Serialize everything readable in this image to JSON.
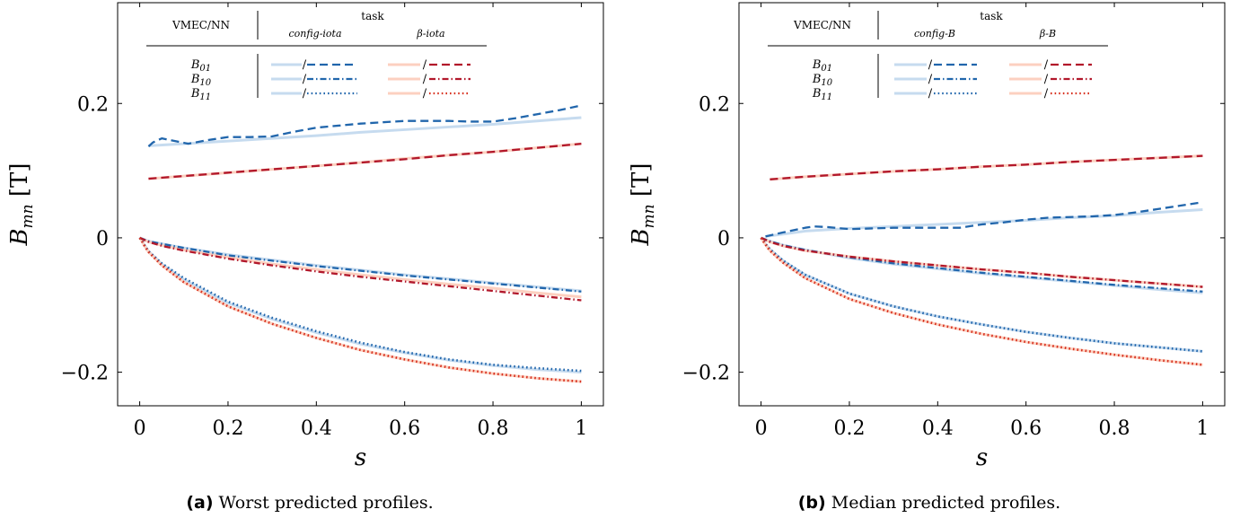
{
  "colors": {
    "blue_truth": "#c6dbef",
    "blue_pred": "#2166ac",
    "red_truth": "#fcd0c0",
    "red_pred": "#b2182b",
    "red_pred_dotted": "#d7301f"
  },
  "series_styles": {
    "B01": "dashed",
    "B10": "dash-dot",
    "B11": "dotted"
  },
  "chart_data": [
    {
      "type": "line",
      "caption_tag": "(a)",
      "caption_text": "Worst predicted profiles.",
      "xlabel": "s",
      "ylabel_main": "B",
      "ylabel_sub": "mn",
      "ylabel_unit": "[T]",
      "xlim": [
        -0.05,
        1.05
      ],
      "ylim": [
        -0.25,
        0.35
      ],
      "xticks": [
        0,
        0.2,
        0.4,
        0.6,
        0.8,
        1
      ],
      "xtick_labels": [
        "0",
        "0.2",
        "0.4",
        "0.6",
        "0.8",
        "1"
      ],
      "yticks": [
        -0.2,
        0,
        0.2
      ],
      "ytick_labels": [
        "−0.2",
        "0",
        "0.2"
      ],
      "legend": {
        "col1_header": "VMEC/NN",
        "task_header": "task",
        "tasks": [
          "config-iota",
          "β-iota"
        ],
        "rows": [
          {
            "base": "B",
            "sub": "01"
          },
          {
            "base": "B",
            "sub": "10"
          },
          {
            "base": "B",
            "sub": "11"
          }
        ],
        "slash": "/"
      },
      "series": [
        {
          "task": 0,
          "mode": "B01",
          "kind": "truth",
          "x": [
            0.02,
            0.1,
            0.2,
            0.3,
            0.4,
            0.5,
            0.6,
            0.7,
            0.8,
            0.9,
            1.0
          ],
          "y": [
            0.137,
            0.14,
            0.144,
            0.148,
            0.152,
            0.157,
            0.161,
            0.165,
            0.169,
            0.174,
            0.179
          ]
        },
        {
          "task": 0,
          "mode": "B01",
          "kind": "pred",
          "x": [
            0.02,
            0.03,
            0.05,
            0.08,
            0.11,
            0.15,
            0.2,
            0.25,
            0.3,
            0.35,
            0.4,
            0.45,
            0.5,
            0.55,
            0.6,
            0.65,
            0.7,
            0.75,
            0.8,
            0.85,
            0.9,
            0.95,
            1.0
          ],
          "y": [
            0.136,
            0.142,
            0.148,
            0.144,
            0.14,
            0.145,
            0.15,
            0.15,
            0.151,
            0.158,
            0.164,
            0.167,
            0.17,
            0.172,
            0.174,
            0.174,
            0.174,
            0.173,
            0.173,
            0.178,
            0.184,
            0.19,
            0.197
          ]
        },
        {
          "task": 0,
          "mode": "B10",
          "kind": "truth",
          "x": [
            0,
            0.02,
            0.05,
            0.1,
            0.2,
            0.3,
            0.4,
            0.5,
            0.6,
            0.7,
            0.8,
            0.9,
            1.0
          ],
          "y": [
            0,
            -0.005,
            -0.009,
            -0.015,
            -0.025,
            -0.033,
            -0.041,
            -0.048,
            -0.055,
            -0.061,
            -0.067,
            -0.073,
            -0.079
          ]
        },
        {
          "task": 0,
          "mode": "B10",
          "kind": "pred",
          "x": [
            0,
            0.02,
            0.05,
            0.1,
            0.2,
            0.3,
            0.4,
            0.5,
            0.6,
            0.7,
            0.8,
            0.9,
            1.0
          ],
          "y": [
            0,
            -0.005,
            -0.009,
            -0.015,
            -0.026,
            -0.034,
            -0.042,
            -0.049,
            -0.056,
            -0.062,
            -0.068,
            -0.074,
            -0.08
          ]
        },
        {
          "task": 0,
          "mode": "B11",
          "kind": "truth",
          "x": [
            0,
            0.005,
            0.01,
            0.02,
            0.05,
            0.1,
            0.2,
            0.3,
            0.4,
            0.5,
            0.6,
            0.7,
            0.8,
            0.9,
            1.0
          ],
          "y": [
            0,
            -0.004,
            -0.01,
            -0.02,
            -0.039,
            -0.062,
            -0.097,
            -0.121,
            -0.141,
            -0.158,
            -0.171,
            -0.182,
            -0.19,
            -0.196,
            -0.2
          ]
        },
        {
          "task": 0,
          "mode": "B11",
          "kind": "pred",
          "x": [
            0,
            0.005,
            0.01,
            0.02,
            0.05,
            0.1,
            0.2,
            0.3,
            0.4,
            0.5,
            0.6,
            0.7,
            0.8,
            0.9,
            1.0
          ],
          "y": [
            0,
            -0.004,
            -0.01,
            -0.02,
            -0.038,
            -0.06,
            -0.095,
            -0.119,
            -0.139,
            -0.156,
            -0.17,
            -0.181,
            -0.189,
            -0.194,
            -0.198
          ]
        },
        {
          "task": 1,
          "mode": "B01",
          "kind": "truth",
          "x": [
            0.02,
            0.1,
            0.2,
            0.3,
            0.4,
            0.5,
            0.6,
            0.7,
            0.8,
            0.9,
            1.0
          ],
          "y": [
            0.088,
            0.092,
            0.097,
            0.102,
            0.107,
            0.112,
            0.118,
            0.123,
            0.128,
            0.134,
            0.14
          ]
        },
        {
          "task": 1,
          "mode": "B01",
          "kind": "pred",
          "x": [
            0.02,
            0.1,
            0.2,
            0.3,
            0.4,
            0.5,
            0.6,
            0.7,
            0.8,
            0.9,
            1.0
          ],
          "y": [
            0.088,
            0.092,
            0.097,
            0.102,
            0.107,
            0.112,
            0.117,
            0.123,
            0.128,
            0.134,
            0.14
          ]
        },
        {
          "task": 1,
          "mode": "B10",
          "kind": "truth",
          "x": [
            0,
            0.02,
            0.05,
            0.1,
            0.2,
            0.3,
            0.4,
            0.5,
            0.6,
            0.7,
            0.8,
            0.9,
            1.0
          ],
          "y": [
            0,
            -0.006,
            -0.011,
            -0.018,
            -0.029,
            -0.039,
            -0.047,
            -0.055,
            -0.062,
            -0.069,
            -0.075,
            -0.082,
            -0.088
          ]
        },
        {
          "task": 1,
          "mode": "B10",
          "kind": "pred",
          "x": [
            0,
            0.02,
            0.05,
            0.1,
            0.2,
            0.3,
            0.4,
            0.5,
            0.6,
            0.7,
            0.8,
            0.9,
            1.0
          ],
          "y": [
            0,
            -0.006,
            -0.012,
            -0.019,
            -0.031,
            -0.041,
            -0.05,
            -0.058,
            -0.065,
            -0.072,
            -0.079,
            -0.086,
            -0.093
          ]
        },
        {
          "task": 1,
          "mode": "B11",
          "kind": "truth",
          "x": [
            0,
            0.005,
            0.01,
            0.02,
            0.05,
            0.1,
            0.2,
            0.3,
            0.4,
            0.5,
            0.6,
            0.7,
            0.8,
            0.9,
            1.0
          ],
          "y": [
            0,
            -0.005,
            -0.011,
            -0.021,
            -0.041,
            -0.066,
            -0.102,
            -0.128,
            -0.149,
            -0.167,
            -0.181,
            -0.193,
            -0.202,
            -0.209,
            -0.214
          ]
        },
        {
          "task": 1,
          "mode": "B11",
          "kind": "pred",
          "x": [
            0,
            0.005,
            0.01,
            0.02,
            0.05,
            0.1,
            0.2,
            0.3,
            0.4,
            0.5,
            0.6,
            0.7,
            0.8,
            0.9,
            1.0
          ],
          "y": [
            0,
            -0.005,
            -0.011,
            -0.021,
            -0.041,
            -0.066,
            -0.102,
            -0.128,
            -0.149,
            -0.167,
            -0.181,
            -0.193,
            -0.202,
            -0.209,
            -0.214
          ]
        }
      ]
    },
    {
      "type": "line",
      "caption_tag": "(b)",
      "caption_text": "Median predicted profiles.",
      "xlabel": "s",
      "ylabel_main": "B",
      "ylabel_sub": "mn",
      "ylabel_unit": "[T]",
      "xlim": [
        -0.05,
        1.05
      ],
      "ylim": [
        -0.25,
        0.35
      ],
      "xticks": [
        0,
        0.2,
        0.4,
        0.6,
        0.8,
        1
      ],
      "xtick_labels": [
        "0",
        "0.2",
        "0.4",
        "0.6",
        "0.8",
        "1"
      ],
      "yticks": [
        -0.2,
        0,
        0.2
      ],
      "ytick_labels": [
        "−0.2",
        "0",
        "0.2"
      ],
      "legend": {
        "col1_header": "VMEC/NN",
        "task_header": "task",
        "tasks": [
          "config-B",
          "β-B"
        ],
        "rows": [
          {
            "base": "B",
            "sub": "01"
          },
          {
            "base": "B",
            "sub": "10"
          },
          {
            "base": "B",
            "sub": "11"
          }
        ],
        "slash": "/"
      },
      "series": [
        {
          "task": 0,
          "mode": "B01",
          "kind": "truth",
          "x": [
            0.01,
            0.1,
            0.2,
            0.3,
            0.4,
            0.5,
            0.6,
            0.7,
            0.8,
            0.9,
            1.0
          ],
          "y": [
            0.002,
            0.01,
            0.014,
            0.017,
            0.02,
            0.023,
            0.026,
            0.03,
            0.033,
            0.038,
            0.042
          ]
        },
        {
          "task": 0,
          "mode": "B01",
          "kind": "pred",
          "x": [
            0.01,
            0.05,
            0.1,
            0.12,
            0.15,
            0.2,
            0.25,
            0.3,
            0.35,
            0.4,
            0.45,
            0.5,
            0.55,
            0.6,
            0.65,
            0.7,
            0.75,
            0.8,
            0.85,
            0.9,
            0.95,
            1.0
          ],
          "y": [
            0.002,
            0.008,
            0.015,
            0.017,
            0.016,
            0.013,
            0.014,
            0.015,
            0.015,
            0.015,
            0.015,
            0.02,
            0.023,
            0.027,
            0.03,
            0.031,
            0.032,
            0.034,
            0.038,
            0.043,
            0.048,
            0.053
          ]
        },
        {
          "task": 0,
          "mode": "B10",
          "kind": "truth",
          "x": [
            0,
            0.02,
            0.05,
            0.1,
            0.2,
            0.3,
            0.4,
            0.5,
            0.6,
            0.7,
            0.8,
            0.9,
            1.0
          ],
          "y": [
            0,
            -0.005,
            -0.011,
            -0.018,
            -0.03,
            -0.039,
            -0.046,
            -0.053,
            -0.059,
            -0.065,
            -0.071,
            -0.077,
            -0.082
          ]
        },
        {
          "task": 0,
          "mode": "B10",
          "kind": "pred",
          "x": [
            0,
            0.02,
            0.05,
            0.1,
            0.2,
            0.3,
            0.4,
            0.5,
            0.6,
            0.7,
            0.8,
            0.9,
            1.0
          ],
          "y": [
            0,
            -0.005,
            -0.011,
            -0.018,
            -0.029,
            -0.038,
            -0.045,
            -0.052,
            -0.058,
            -0.064,
            -0.07,
            -0.075,
            -0.08
          ]
        },
        {
          "task": 0,
          "mode": "B11",
          "kind": "truth",
          "x": [
            0,
            0.005,
            0.01,
            0.02,
            0.05,
            0.1,
            0.2,
            0.3,
            0.4,
            0.5,
            0.6,
            0.7,
            0.8,
            0.9,
            1.0
          ],
          "y": [
            0,
            -0.004,
            -0.009,
            -0.017,
            -0.034,
            -0.055,
            -0.083,
            -0.102,
            -0.117,
            -0.129,
            -0.14,
            -0.149,
            -0.157,
            -0.163,
            -0.169
          ]
        },
        {
          "task": 0,
          "mode": "B11",
          "kind": "pred",
          "x": [
            0,
            0.005,
            0.01,
            0.02,
            0.05,
            0.1,
            0.2,
            0.3,
            0.4,
            0.5,
            0.6,
            0.7,
            0.8,
            0.9,
            1.0
          ],
          "y": [
            0,
            -0.004,
            -0.009,
            -0.017,
            -0.034,
            -0.055,
            -0.083,
            -0.102,
            -0.117,
            -0.129,
            -0.14,
            -0.149,
            -0.157,
            -0.163,
            -0.169
          ]
        },
        {
          "task": 1,
          "mode": "B01",
          "kind": "truth",
          "x": [
            0.02,
            0.1,
            0.2,
            0.3,
            0.4,
            0.5,
            0.6,
            0.7,
            0.8,
            0.9,
            1.0
          ],
          "y": [
            0.087,
            0.091,
            0.095,
            0.099,
            0.102,
            0.106,
            0.109,
            0.113,
            0.116,
            0.119,
            0.122
          ]
        },
        {
          "task": 1,
          "mode": "B01",
          "kind": "pred",
          "x": [
            0.02,
            0.1,
            0.2,
            0.3,
            0.4,
            0.5,
            0.6,
            0.7,
            0.8,
            0.9,
            1.0
          ],
          "y": [
            0.087,
            0.091,
            0.095,
            0.099,
            0.102,
            0.106,
            0.109,
            0.113,
            0.116,
            0.119,
            0.122
          ]
        },
        {
          "task": 1,
          "mode": "B10",
          "kind": "truth",
          "x": [
            0,
            0.02,
            0.05,
            0.1,
            0.2,
            0.3,
            0.4,
            0.5,
            0.6,
            0.7,
            0.8,
            0.9,
            1.0
          ],
          "y": [
            0,
            -0.006,
            -0.012,
            -0.019,
            -0.028,
            -0.035,
            -0.041,
            -0.047,
            -0.052,
            -0.058,
            -0.063,
            -0.068,
            -0.073
          ]
        },
        {
          "task": 1,
          "mode": "B10",
          "kind": "pred",
          "x": [
            0,
            0.02,
            0.05,
            0.1,
            0.2,
            0.3,
            0.4,
            0.5,
            0.6,
            0.7,
            0.8,
            0.9,
            1.0
          ],
          "y": [
            0,
            -0.006,
            -0.012,
            -0.019,
            -0.028,
            -0.035,
            -0.041,
            -0.047,
            -0.052,
            -0.058,
            -0.063,
            -0.068,
            -0.073
          ]
        },
        {
          "task": 1,
          "mode": "B11",
          "kind": "truth",
          "x": [
            0,
            0.005,
            0.01,
            0.02,
            0.05,
            0.1,
            0.2,
            0.3,
            0.4,
            0.5,
            0.6,
            0.7,
            0.8,
            0.9,
            1.0
          ],
          "y": [
            0,
            -0.005,
            -0.01,
            -0.019,
            -0.037,
            -0.06,
            -0.091,
            -0.112,
            -0.129,
            -0.143,
            -0.155,
            -0.165,
            -0.174,
            -0.182,
            -0.189
          ]
        },
        {
          "task": 1,
          "mode": "B11",
          "kind": "pred",
          "x": [
            0,
            0.005,
            0.01,
            0.02,
            0.05,
            0.1,
            0.2,
            0.3,
            0.4,
            0.5,
            0.6,
            0.7,
            0.8,
            0.9,
            1.0
          ],
          "y": [
            0,
            -0.005,
            -0.01,
            -0.019,
            -0.037,
            -0.06,
            -0.091,
            -0.112,
            -0.129,
            -0.143,
            -0.155,
            -0.165,
            -0.174,
            -0.182,
            -0.189
          ]
        }
      ]
    }
  ]
}
